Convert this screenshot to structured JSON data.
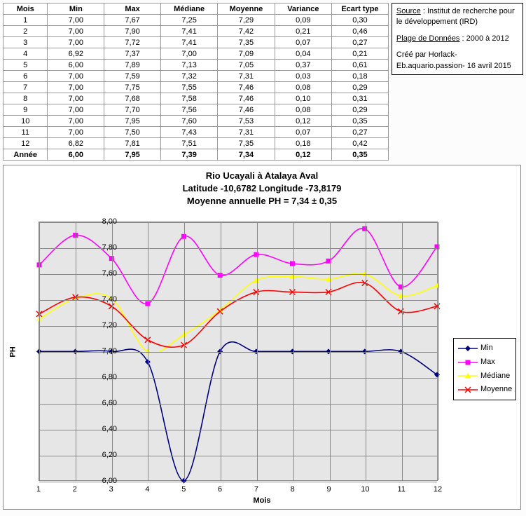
{
  "table": {
    "headers": [
      "Mois",
      "Min",
      "Max",
      "Médiane",
      "Moyenne",
      "Variance",
      "Ecart type"
    ],
    "rows": [
      [
        "1",
        "7,00",
        "7,67",
        "7,25",
        "7,29",
        "0,09",
        "0,30"
      ],
      [
        "2",
        "7,00",
        "7,90",
        "7,41",
        "7,42",
        "0,21",
        "0,46"
      ],
      [
        "3",
        "7,00",
        "7,72",
        "7,41",
        "7,35",
        "0,07",
        "0,27"
      ],
      [
        "4",
        "6,92",
        "7,37",
        "7,00",
        "7,09",
        "0,04",
        "0,21"
      ],
      [
        "5",
        "6,00",
        "7,89",
        "7,13",
        "7,05",
        "0,37",
        "0,61"
      ],
      [
        "6",
        "7,00",
        "7,59",
        "7,32",
        "7,31",
        "0,03",
        "0,18"
      ],
      [
        "7",
        "7,00",
        "7,75",
        "7,55",
        "7,46",
        "0,08",
        "0,29"
      ],
      [
        "8",
        "7,00",
        "7,68",
        "7,58",
        "7,46",
        "0,10",
        "0,31"
      ],
      [
        "9",
        "7,00",
        "7,70",
        "7,56",
        "7,46",
        "0,08",
        "0,29"
      ],
      [
        "10",
        "7,00",
        "7,95",
        "7,60",
        "7,53",
        "0,12",
        "0,35"
      ],
      [
        "11",
        "7,00",
        "7,50",
        "7,43",
        "7,31",
        "0,07",
        "0,27"
      ],
      [
        "12",
        "6,82",
        "7,81",
        "7,51",
        "7,35",
        "0,18",
        "0,42"
      ]
    ],
    "total": [
      "Année",
      "6,00",
      "7,95",
      "7,39",
      "7,34",
      "0,12",
      "0,35"
    ]
  },
  "info": {
    "source_label": "Source",
    "source_text": " : Institut de recherche pour le développement (IRD)",
    "range_label": "Plage de Données",
    "range_text": " : 2000 à 2012",
    "credit": "Créé par Horlack- Eb.aquario.passion- 16 avril 2015"
  },
  "chart": {
    "title1": "Rio Ucayali à Atalaya Aval",
    "title2": "Latitude -10,6782 Longitude -73,8179",
    "title3": "Moyenne annuelle PH = 7,34 ± 0,35",
    "ylabel": "PH",
    "xlabel": "Mois",
    "ymin": 6.0,
    "ymax": 8.0,
    "ystep": 0.2,
    "xvals": [
      1,
      2,
      3,
      4,
      5,
      6,
      7,
      8,
      9,
      10,
      11,
      12
    ],
    "series": [
      {
        "name": "Min",
        "color": "#000080",
        "marker": "diamond",
        "values": [
          7.0,
          7.0,
          7.0,
          6.92,
          6.0,
          7.0,
          7.0,
          7.0,
          7.0,
          7.0,
          7.0,
          6.82
        ]
      },
      {
        "name": "Max",
        "color": "#ff00ff",
        "marker": "square",
        "values": [
          7.67,
          7.9,
          7.72,
          7.37,
          7.89,
          7.59,
          7.75,
          7.68,
          7.7,
          7.95,
          7.5,
          7.81
        ]
      },
      {
        "name": "Médiane",
        "color": "#ffff00",
        "marker": "triangle",
        "values": [
          7.25,
          7.41,
          7.41,
          7.0,
          7.13,
          7.32,
          7.55,
          7.58,
          7.56,
          7.6,
          7.43,
          7.51
        ]
      },
      {
        "name": "Moyenne",
        "color": "#ff0000",
        "marker": "x",
        "values": [
          7.29,
          7.42,
          7.35,
          7.09,
          7.05,
          7.31,
          7.46,
          7.46,
          7.46,
          7.53,
          7.31,
          7.35
        ]
      }
    ],
    "grid_color": "#888888",
    "plot_bg": "#e6e6e6",
    "legend_labels": [
      "Min",
      "Max",
      "Médiane",
      "Moyenne"
    ]
  }
}
